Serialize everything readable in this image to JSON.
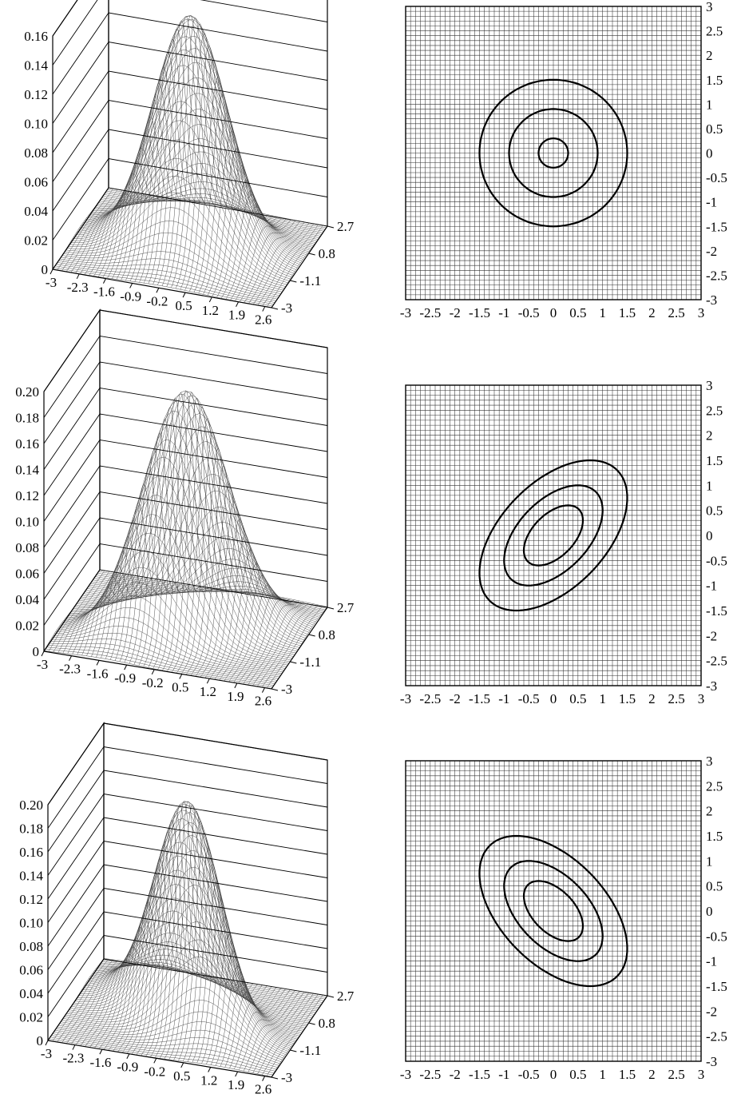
{
  "chart_data": [
    {
      "type": "surface",
      "x_ticks": [
        "-3",
        "-2.3",
        "-1.6",
        "-0.9",
        "-0.2",
        "0.5",
        "1.2",
        "1.9",
        "2.6"
      ],
      "y_ticks": [
        "2.7",
        "0.8",
        "-1.1",
        "-3"
      ],
      "z_ticks": [
        "0",
        "0.02",
        "0.04",
        "0.06",
        "0.08",
        "0.10",
        "0.12",
        "0.14",
        "0.16"
      ],
      "zlim": [
        0,
        0.16
      ],
      "mean": [
        0,
        0
      ],
      "sigma_x": 1.0,
      "sigma_y": 1.0,
      "rho": 0.0,
      "peak": 0.159
    },
    {
      "type": "contour",
      "x_ticks": [
        "-3",
        "-2.5",
        "-2",
        "-1.5",
        "-1",
        "-0.5",
        "0",
        "0.5",
        "1",
        "1.5",
        "2",
        "2.5",
        "3"
      ],
      "y_ticks": [
        "3",
        "2.5",
        "2",
        "1.5",
        "1",
        "0.5",
        "0",
        "-0.5",
        "-1",
        "-1.5",
        "-2",
        "-2.5",
        "-3"
      ],
      "xlim": [
        -3,
        3
      ],
      "ylim": [
        -3,
        3
      ],
      "mean": [
        0,
        0
      ],
      "sigma_x": 1.0,
      "sigma_y": 1.0,
      "rho": 0.0,
      "contour_radii_sigma": [
        0.3,
        0.9,
        1.5
      ],
      "grid": true
    },
    {
      "type": "surface",
      "x_ticks": [
        "-3",
        "-2.3",
        "-1.6",
        "-0.9",
        "-0.2",
        "0.5",
        "1.2",
        "1.9",
        "2.6"
      ],
      "y_ticks": [
        "2.7",
        "0.8",
        "-1.1",
        "-3"
      ],
      "z_ticks": [
        "0",
        "0.02",
        "0.04",
        "0.06",
        "0.08",
        "0.10",
        "0.12",
        "0.14",
        "0.16",
        "0.18",
        "0.20"
      ],
      "zlim": [
        0,
        0.2
      ],
      "mean": [
        0,
        0
      ],
      "sigma_x": 1.0,
      "sigma_y": 1.0,
      "rho": 0.5,
      "peak": 0.184
    },
    {
      "type": "contour",
      "x_ticks": [
        "-3",
        "-2.5",
        "-2",
        "-1.5",
        "-1",
        "-0.5",
        "0",
        "0.5",
        "1",
        "1.5",
        "2",
        "2.5",
        "3"
      ],
      "y_ticks": [
        "3",
        "2.5",
        "2",
        "1.5",
        "1",
        "0.5",
        "0",
        "-0.5",
        "-1",
        "-1.5",
        "-2",
        "-2.5",
        "-3"
      ],
      "xlim": [
        -3,
        3
      ],
      "ylim": [
        -3,
        3
      ],
      "mean": [
        0,
        0
      ],
      "sigma_x": 1.0,
      "sigma_y": 1.0,
      "rho": 0.5,
      "contour_radii_sigma": [
        0.6,
        1.0,
        1.5
      ],
      "grid": true
    },
    {
      "type": "surface",
      "x_ticks": [
        "-3",
        "-2.3",
        "-1.6",
        "-0.9",
        "-0.2",
        "0.5",
        "1.2",
        "1.9",
        "2.6"
      ],
      "y_ticks": [
        "2.7",
        "0.8",
        "-1.1",
        "-3"
      ],
      "z_ticks": [
        "0",
        "0.02",
        "0.04",
        "0.06",
        "0.08",
        "0.10",
        "0.12",
        "0.14",
        "0.16",
        "0.18",
        "0.20"
      ],
      "zlim": [
        0,
        0.2
      ],
      "mean": [
        0,
        0
      ],
      "sigma_x": 1.0,
      "sigma_y": 1.0,
      "rho": -0.5,
      "peak": 0.184
    },
    {
      "type": "contour",
      "x_ticks": [
        "-3",
        "-2.5",
        "-2",
        "-1.5",
        "-1",
        "-0.5",
        "0",
        "0.5",
        "1",
        "1.5",
        "2",
        "2.5",
        "3"
      ],
      "y_ticks": [
        "3",
        "2.5",
        "2",
        "1.5",
        "1",
        "0.5",
        "0",
        "-0.5",
        "-1",
        "-1.5",
        "-2",
        "-2.5",
        "-3"
      ],
      "xlim": [
        -3,
        3
      ],
      "ylim": [
        -3,
        3
      ],
      "mean": [
        0,
        0
      ],
      "sigma_x": 1.0,
      "sigma_y": 1.0,
      "rho": -0.5,
      "contour_radii_sigma": [
        0.6,
        1.0,
        1.5
      ],
      "grid": true
    }
  ]
}
